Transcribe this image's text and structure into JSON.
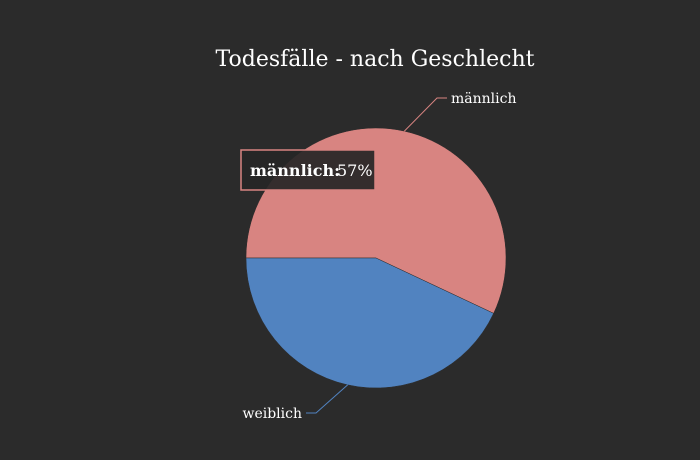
{
  "chart_data": {
    "type": "pie",
    "title": "Todesfälle - nach Geschlecht",
    "slices": [
      {
        "label": "männlich",
        "value": 57,
        "color": "#d88481"
      },
      {
        "label": "weiblich",
        "value": 43,
        "color": "#5183c0"
      }
    ],
    "tooltip": {
      "name": "männlich:",
      "value": "57%"
    }
  },
  "colors": {
    "background": "#2b2b2b",
    "text": "#ffffff",
    "tooltip_border": "#d88481"
  }
}
